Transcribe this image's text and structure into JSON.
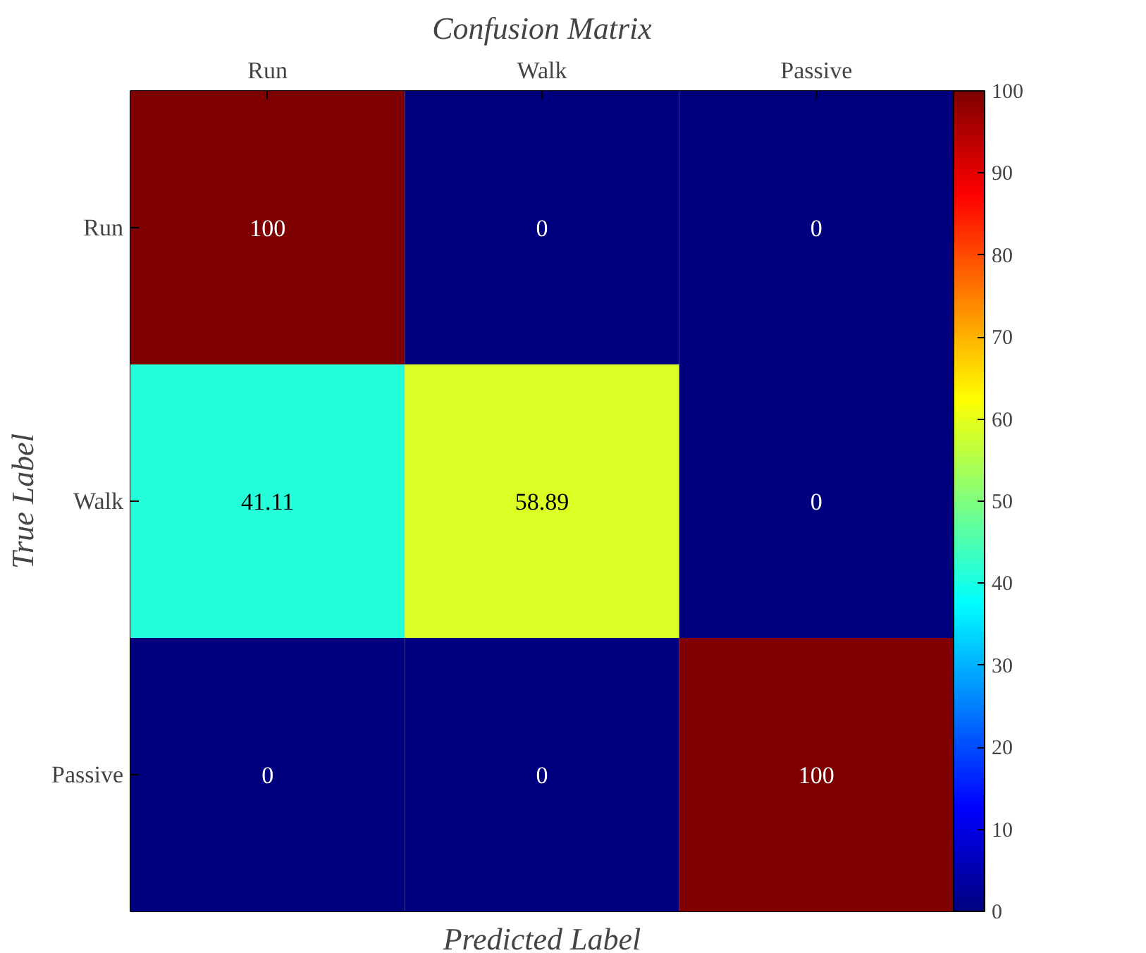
{
  "chart_data": {
    "type": "heatmap",
    "title": "Confusion Matrix",
    "xlabel": "Predicted Label",
    "ylabel": "True Label",
    "categories": [
      "Run",
      "Walk",
      "Passive"
    ],
    "y_categories": [
      "Run",
      "Walk",
      "Passive"
    ],
    "cells": [
      [
        100,
        0,
        0
      ],
      [
        41.11,
        58.89,
        0
      ],
      [
        0,
        0,
        100
      ]
    ],
    "clim": [
      0,
      100
    ],
    "cticks": [
      0,
      10,
      20,
      30,
      40,
      50,
      60,
      70,
      80,
      90,
      100
    ],
    "data_labels": true
  }
}
